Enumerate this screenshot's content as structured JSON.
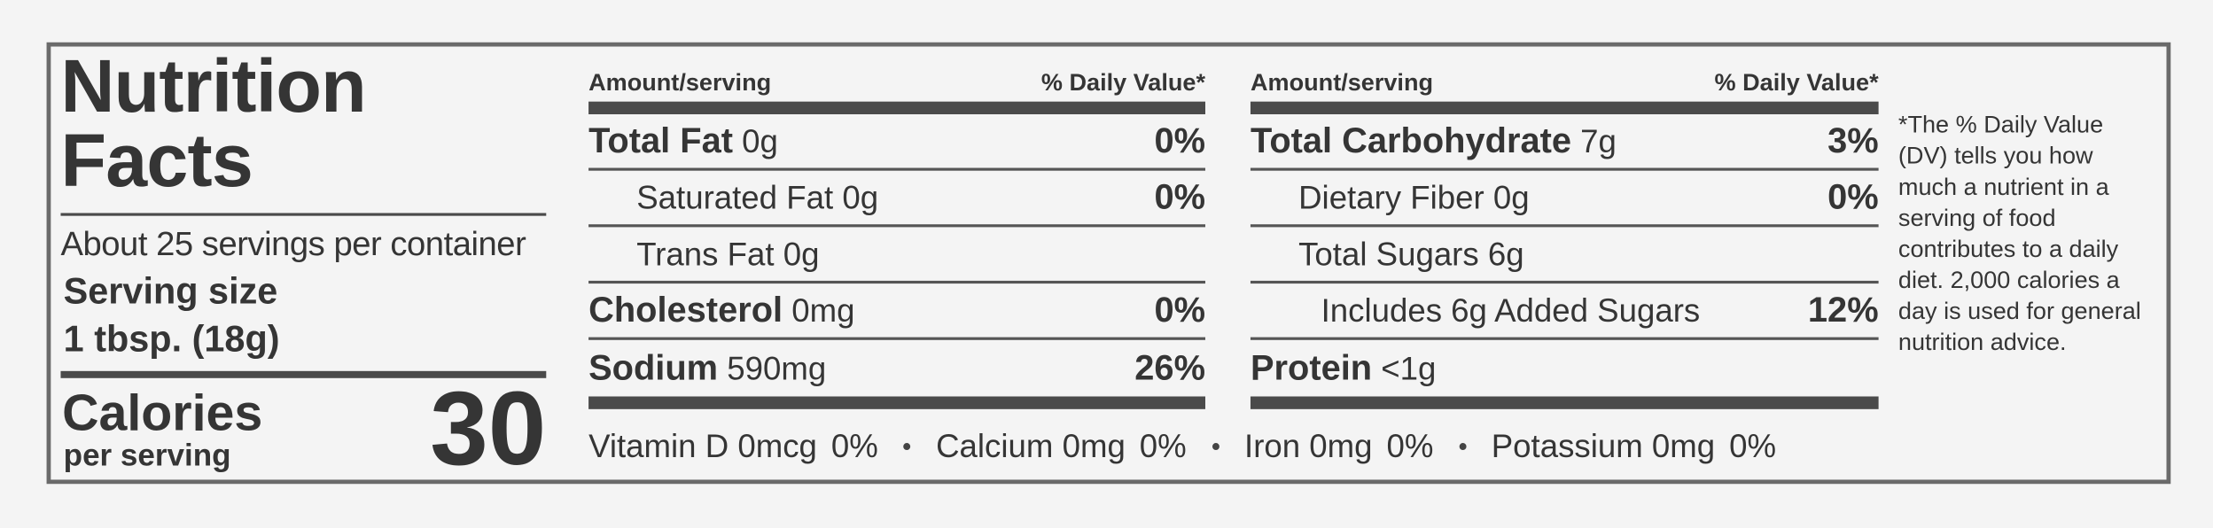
{
  "title_lines": [
    "Nutrition",
    "Facts"
  ],
  "servings": "About 25 servings per container",
  "serving_size_label": "Serving size",
  "serving_size": "1 tbsp. (18g)",
  "calories_label": "Calories",
  "calories_sub": "per serving",
  "calories": 30,
  "columns": [
    {
      "header_amount": "Amount/serving",
      "header_dv": "% Daily Value*",
      "rows": [
        {
          "name": "Total Fat",
          "amount": "0g",
          "dv": "0%"
        },
        {
          "name": "Saturated Fat 0g",
          "dv": "0%"
        },
        {
          "name": "Trans Fat 0g"
        },
        {
          "name": "Cholesterol",
          "amount": "0mg",
          "dv": "0%"
        },
        {
          "name": "Sodium",
          "amount": "590mg",
          "dv": "26%"
        }
      ]
    },
    {
      "header_amount": "Amount/serving",
      "header_dv": "% Daily Value*",
      "rows": [
        {
          "name": "Total Carbohydrate",
          "amount": "7g",
          "dv": "3%"
        },
        {
          "name": "Dietary Fiber 0g",
          "dv": "0%"
        },
        {
          "name": "Total Sugars 6g"
        },
        {
          "name": "Includes 6g Added Sugars",
          "dv": "12%"
        },
        {
          "name": "Protein",
          "amount": "<1g"
        }
      ]
    }
  ],
  "vitamins": [
    {
      "name": "Vitamin D 0mcg",
      "dv": "0%"
    },
    {
      "name": "Calcium 0mg",
      "dv": "0%"
    },
    {
      "name": "Iron 0mg",
      "dv": "0%"
    },
    {
      "name": "Potassium 0mg",
      "dv": "0%"
    }
  ],
  "footnote": "*The % Daily Value (DV) tells you how much a nutrient in a serving of food contributes to a daily diet. 2,000 calories a day is used for general nutrition advice."
}
